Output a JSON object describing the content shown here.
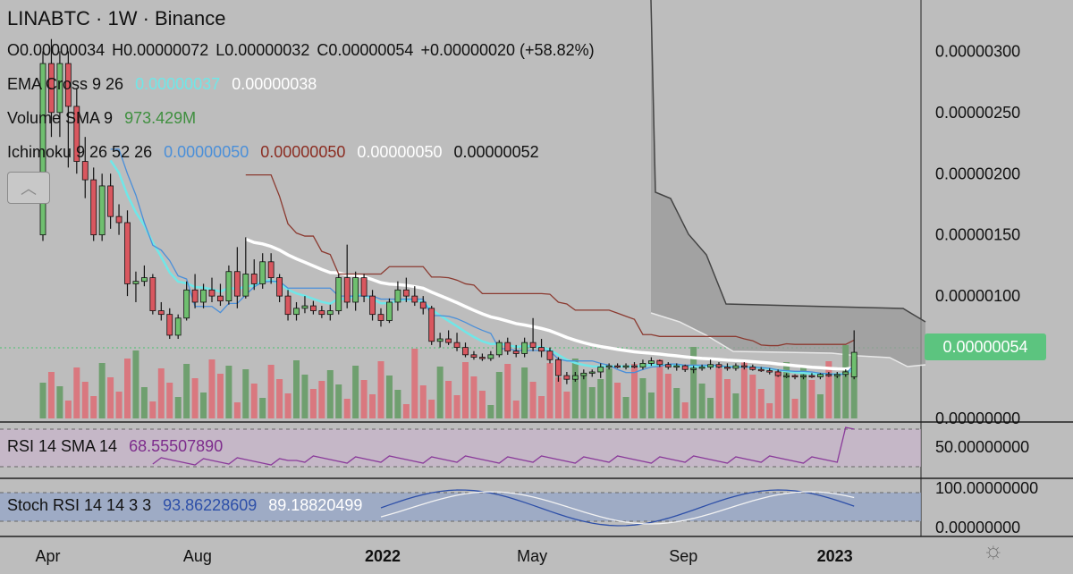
{
  "chart_data": {
    "type": "candlestick",
    "symbol": "LINABTC",
    "timeframe": "1W",
    "exchange": "Binance",
    "title": "LINABTC · 1W · Binance",
    "ohlc": {
      "o_label": "O0.00000034",
      "h_label": "H0.00000072",
      "l_label": "L0.00000032",
      "c_label": "C0.00000054",
      "change": "+0.00000020 (+58.82%)"
    },
    "indicators": {
      "ema": {
        "label": "EMA Cross 9 26",
        "v1": "0.00000037",
        "v2": "0.00000038",
        "c1": "#6fe7e8",
        "c2": "#ffffff"
      },
      "volume": {
        "label": "Volume SMA 9",
        "value": "973.429M",
        "color": "#3f8f3f"
      },
      "ichimoku": {
        "label": "Ichimoku 9 26 52 26",
        "v1": "0.00000050",
        "v2": "0.00000050",
        "v3": "0.00000050",
        "v4": "0.00000052",
        "c1": "#4a8fd9",
        "c2": "#8b2d22",
        "c3": "#ffffff",
        "c4": "#111111"
      },
      "rsi": {
        "label": "RSI 14 SMA 14",
        "value": "68.55507890",
        "color": "#7d2c8c"
      },
      "stoch": {
        "label": "Stoch RSI 14 14 3 3",
        "v1": "93.86228609",
        "v2": "89.18820499",
        "c1": "#2d4fa8",
        "c2": "#ffffff"
      }
    },
    "y_ticks": [
      "0.00000300",
      "0.00000250",
      "0.00000200",
      "0.00000150",
      "0.00000100",
      "0.00000000"
    ],
    "y_tick_values": [
      300,
      250,
      200,
      150,
      100,
      0
    ],
    "ylim": [
      0,
      320
    ],
    "rsi_ticks": [
      "50.00000000"
    ],
    "stoch_ticks": [
      "100.00000000",
      "0.00000000"
    ],
    "x_ticks": [
      {
        "label": "Apr",
        "bar": 1.0,
        "bold": false
      },
      {
        "label": "Aug",
        "bar": 18.5,
        "bold": false
      },
      {
        "label": "2022",
        "bar": 40.0,
        "bold": true
      },
      {
        "label": "May",
        "bar": 58.0,
        "bold": false
      },
      {
        "label": "Sep",
        "bar": 76.0,
        "bold": false
      },
      {
        "label": "2023",
        "bar": 93.5,
        "bold": true
      }
    ],
    "last_price": "0.00000054",
    "last_price_value": 54,
    "candles": [
      {
        "o": 150,
        "h": 300,
        "l": 145,
        "c": 290
      },
      {
        "o": 290,
        "h": 310,
        "l": 230,
        "c": 250
      },
      {
        "o": 250,
        "h": 300,
        "l": 230,
        "c": 290
      },
      {
        "o": 290,
        "h": 300,
        "l": 205,
        "c": 255
      },
      {
        "o": 255,
        "h": 270,
        "l": 200,
        "c": 210
      },
      {
        "o": 210,
        "h": 230,
        "l": 180,
        "c": 195
      },
      {
        "o": 195,
        "h": 205,
        "l": 145,
        "c": 150
      },
      {
        "o": 150,
        "h": 200,
        "l": 145,
        "c": 190
      },
      {
        "o": 190,
        "h": 200,
        "l": 155,
        "c": 165
      },
      {
        "o": 165,
        "h": 175,
        "l": 150,
        "c": 160
      },
      {
        "o": 160,
        "h": 170,
        "l": 100,
        "c": 110
      },
      {
        "o": 110,
        "h": 120,
        "l": 95,
        "c": 112
      },
      {
        "o": 112,
        "h": 125,
        "l": 108,
        "c": 115
      },
      {
        "o": 115,
        "h": 118,
        "l": 85,
        "c": 88
      },
      {
        "o": 88,
        "h": 95,
        "l": 80,
        "c": 85
      },
      {
        "o": 85,
        "h": 90,
        "l": 65,
        "c": 68
      },
      {
        "o": 68,
        "h": 85,
        "l": 65,
        "c": 82
      },
      {
        "o": 82,
        "h": 112,
        "l": 80,
        "c": 105
      },
      {
        "o": 105,
        "h": 118,
        "l": 90,
        "c": 95
      },
      {
        "o": 95,
        "h": 110,
        "l": 90,
        "c": 105
      },
      {
        "o": 105,
        "h": 115,
        "l": 95,
        "c": 100
      },
      {
        "o": 100,
        "h": 110,
        "l": 92,
        "c": 96
      },
      {
        "o": 96,
        "h": 125,
        "l": 93,
        "c": 120
      },
      {
        "o": 120,
        "h": 140,
        "l": 90,
        "c": 100
      },
      {
        "o": 100,
        "h": 148,
        "l": 98,
        "c": 118
      },
      {
        "o": 118,
        "h": 130,
        "l": 105,
        "c": 110
      },
      {
        "o": 110,
        "h": 135,
        "l": 106,
        "c": 128
      },
      {
        "o": 128,
        "h": 135,
        "l": 110,
        "c": 115
      },
      {
        "o": 115,
        "h": 118,
        "l": 95,
        "c": 100
      },
      {
        "o": 100,
        "h": 105,
        "l": 80,
        "c": 85
      },
      {
        "o": 85,
        "h": 95,
        "l": 80,
        "c": 90
      },
      {
        "o": 90,
        "h": 100,
        "l": 86,
        "c": 92
      },
      {
        "o": 92,
        "h": 96,
        "l": 85,
        "c": 88
      },
      {
        "o": 88,
        "h": 92,
        "l": 82,
        "c": 85
      },
      {
        "o": 85,
        "h": 93,
        "l": 80,
        "c": 88
      },
      {
        "o": 88,
        "h": 118,
        "l": 85,
        "c": 115
      },
      {
        "o": 115,
        "h": 142,
        "l": 90,
        "c": 95
      },
      {
        "o": 95,
        "h": 120,
        "l": 88,
        "c": 115
      },
      {
        "o": 115,
        "h": 118,
        "l": 95,
        "c": 100
      },
      {
        "o": 100,
        "h": 105,
        "l": 80,
        "c": 85
      },
      {
        "o": 85,
        "h": 90,
        "l": 75,
        "c": 80
      },
      {
        "o": 80,
        "h": 98,
        "l": 78,
        "c": 95
      },
      {
        "o": 95,
        "h": 112,
        "l": 88,
        "c": 105
      },
      {
        "o": 105,
        "h": 115,
        "l": 95,
        "c": 100
      },
      {
        "o": 100,
        "h": 108,
        "l": 92,
        "c": 95
      },
      {
        "o": 95,
        "h": 100,
        "l": 85,
        "c": 90
      },
      {
        "o": 90,
        "h": 92,
        "l": 60,
        "c": 63
      },
      {
        "o": 63,
        "h": 70,
        "l": 58,
        "c": 65
      },
      {
        "o": 65,
        "h": 72,
        "l": 60,
        "c": 62
      },
      {
        "o": 62,
        "h": 70,
        "l": 55,
        "c": 58
      },
      {
        "o": 58,
        "h": 62,
        "l": 50,
        "c": 52
      },
      {
        "o": 52,
        "h": 55,
        "l": 48,
        "c": 50
      },
      {
        "o": 50,
        "h": 53,
        "l": 47,
        "c": 49
      },
      {
        "o": 49,
        "h": 55,
        "l": 47,
        "c": 52
      },
      {
        "o": 52,
        "h": 64,
        "l": 50,
        "c": 62
      },
      {
        "o": 62,
        "h": 66,
        "l": 52,
        "c": 55
      },
      {
        "o": 55,
        "h": 60,
        "l": 50,
        "c": 53
      },
      {
        "o": 53,
        "h": 66,
        "l": 50,
        "c": 62
      },
      {
        "o": 62,
        "h": 82,
        "l": 55,
        "c": 58
      },
      {
        "o": 58,
        "h": 65,
        "l": 50,
        "c": 55
      },
      {
        "o": 55,
        "h": 58,
        "l": 45,
        "c": 48
      },
      {
        "o": 48,
        "h": 50,
        "l": 30,
        "c": 35
      },
      {
        "o": 35,
        "h": 38,
        "l": 28,
        "c": 32
      },
      {
        "o": 32,
        "h": 38,
        "l": 30,
        "c": 35
      },
      {
        "o": 35,
        "h": 40,
        "l": 32,
        "c": 37
      },
      {
        "o": 37,
        "h": 40,
        "l": 34,
        "c": 38
      },
      {
        "o": 38,
        "h": 45,
        "l": 33,
        "c": 42
      },
      {
        "o": 42,
        "h": 45,
        "l": 40,
        "c": 43
      },
      {
        "o": 43,
        "h": 45,
        "l": 41,
        "c": 42
      },
      {
        "o": 42,
        "h": 45,
        "l": 40,
        "c": 43
      },
      {
        "o": 43,
        "h": 46,
        "l": 41,
        "c": 42
      },
      {
        "o": 42,
        "h": 48,
        "l": 40,
        "c": 45
      },
      {
        "o": 45,
        "h": 50,
        "l": 43,
        "c": 47
      },
      {
        "o": 47,
        "h": 48,
        "l": 42,
        "c": 44
      },
      {
        "o": 44,
        "h": 46,
        "l": 40,
        "c": 42
      },
      {
        "o": 42,
        "h": 45,
        "l": 39,
        "c": 43
      },
      {
        "o": 43,
        "h": 44,
        "l": 38,
        "c": 40
      },
      {
        "o": 40,
        "h": 43,
        "l": 37,
        "c": 41
      },
      {
        "o": 41,
        "h": 44,
        "l": 39,
        "c": 42
      },
      {
        "o": 42,
        "h": 48,
        "l": 40,
        "c": 44
      },
      {
        "o": 44,
        "h": 46,
        "l": 41,
        "c": 42
      },
      {
        "o": 42,
        "h": 45,
        "l": 39,
        "c": 41
      },
      {
        "o": 41,
        "h": 45,
        "l": 39,
        "c": 43
      },
      {
        "o": 43,
        "h": 46,
        "l": 40,
        "c": 42
      },
      {
        "o": 42,
        "h": 44,
        "l": 39,
        "c": 40
      },
      {
        "o": 40,
        "h": 42,
        "l": 38,
        "c": 39
      },
      {
        "o": 39,
        "h": 41,
        "l": 36,
        "c": 38
      },
      {
        "o": 38,
        "h": 40,
        "l": 34,
        "c": 35
      },
      {
        "o": 35,
        "h": 37,
        "l": 33,
        "c": 35
      },
      {
        "o": 35,
        "h": 36,
        "l": 32,
        "c": 34
      },
      {
        "o": 34,
        "h": 36,
        "l": 32,
        "c": 35
      },
      {
        "o": 35,
        "h": 37,
        "l": 33,
        "c": 34
      },
      {
        "o": 34,
        "h": 37,
        "l": 32,
        "c": 36
      },
      {
        "o": 36,
        "h": 38,
        "l": 34,
        "c": 35
      },
      {
        "o": 35,
        "h": 38,
        "l": 33,
        "c": 36
      },
      {
        "o": 36,
        "h": 40,
        "l": 34,
        "c": 38
      },
      {
        "o": 34,
        "h": 72,
        "l": 32,
        "c": 54
      }
    ]
  }
}
